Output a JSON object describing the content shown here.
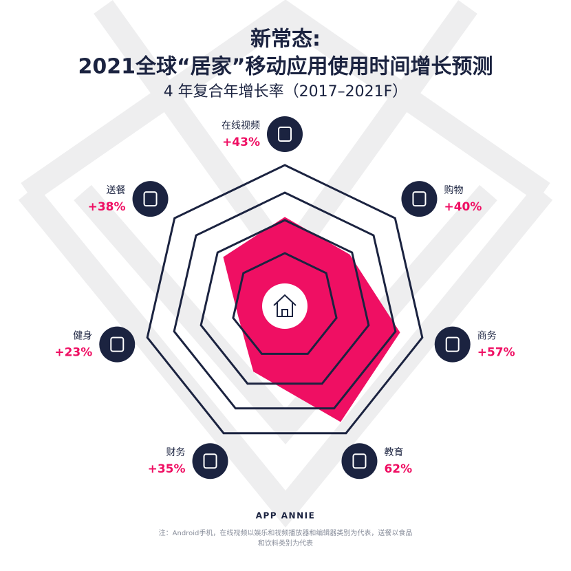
{
  "chart_data": {
    "type": "radar",
    "title": "新常态:",
    "title_line2": "2021全球“居家”移动应用使用时间增长预测",
    "subtitle": "4 年复合年增长率（2017–2021F）",
    "categories": [
      "在线视频",
      "购物",
      "商务",
      "教育",
      "财务",
      "健身",
      "送餐"
    ],
    "values": [
      43,
      40,
      57,
      62,
      35,
      23,
      38
    ],
    "value_labels": [
      "+43%",
      "+40%",
      "+57%",
      "62%",
      "+35%",
      "+23%",
      "+38%"
    ],
    "color": "#ef0f63",
    "ylim": [
      0,
      68
    ],
    "source": "APP ANNIE",
    "note_line1": "注：Android手机，在线视频以娱乐和视频播放器和编辑器类别为代表，送餐以食品",
    "note_line2": "和饮料类别为代表"
  }
}
